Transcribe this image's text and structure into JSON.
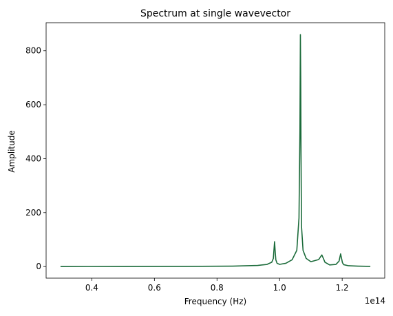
{
  "chart_data": {
    "type": "line",
    "title": "Spectrum at single wavevector",
    "xlabel": "Frequency (Hz)",
    "ylabel": "Amplitude",
    "x_offset_label": "1e14",
    "xlim": [
      0.254,
      1.336
    ],
    "ylim": [
      -43,
      904
    ],
    "x_ticks": [
      0.4,
      0.6,
      0.8,
      1.0,
      1.2
    ],
    "x_tick_labels": [
      "0.4",
      "0.6",
      "0.8",
      "1.0",
      "1.2"
    ],
    "y_ticks": [
      0,
      200,
      400,
      600,
      800
    ],
    "y_tick_labels": [
      "0",
      "200",
      "400",
      "600",
      "800"
    ],
    "grid": false,
    "series": [
      {
        "color": "#1b6b3a",
        "x": [
          0.3,
          0.5,
          0.7,
          0.85,
          0.93,
          0.96,
          0.975,
          0.98,
          0.984,
          0.986,
          0.988,
          0.992,
          1.0,
          1.02,
          1.04,
          1.055,
          1.062,
          1.065,
          1.0665,
          1.0675,
          1.0685,
          1.07,
          1.075,
          1.085,
          1.1,
          1.125,
          1.135,
          1.14,
          1.145,
          1.16,
          1.18,
          1.19,
          1.195,
          1.198,
          1.201,
          1.205,
          1.22,
          1.25,
          1.29
        ],
        "y": [
          0,
          0.2,
          0.6,
          1.5,
          4,
          8,
          16,
          30,
          92,
          55,
          25,
          12,
          8,
          12,
          25,
          60,
          180,
          500,
          860,
          700,
          420,
          150,
          60,
          30,
          18,
          26,
          43,
          30,
          16,
          6,
          8,
          20,
          47,
          30,
          14,
          7,
          3,
          1.5,
          0.5
        ]
      }
    ]
  }
}
